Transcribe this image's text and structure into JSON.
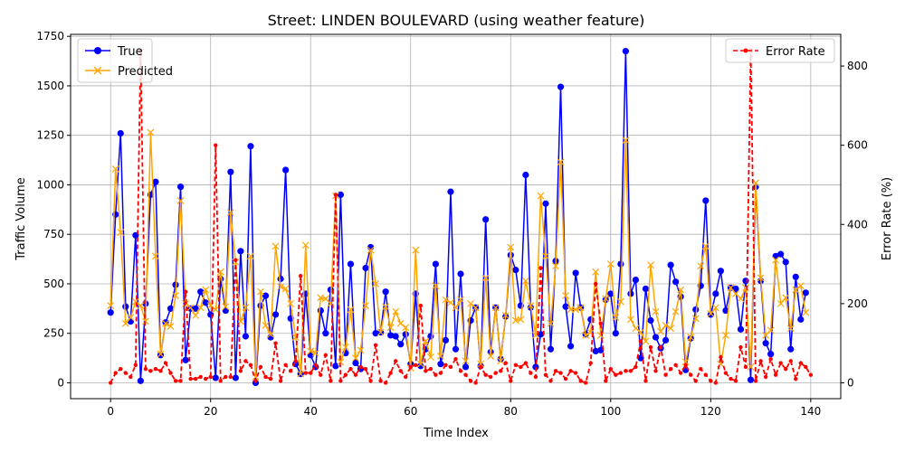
{
  "chart_data": {
    "type": "line",
    "title": "Street: LINDEN BOULEVARD (using weather feature)",
    "xlabel": "Time Index",
    "ylabel": "Traffic Volume",
    "y2label": "Error Rate (%)",
    "xlim": [
      -8,
      146
    ],
    "ylim": [
      -80,
      1760
    ],
    "y2lim": [
      -40,
      880
    ],
    "xticks": [
      0,
      20,
      40,
      60,
      80,
      100,
      120,
      140
    ],
    "yticks": [
      0,
      250,
      500,
      750,
      1000,
      1250,
      1500,
      1750
    ],
    "y2ticks": [
      0,
      200,
      400,
      600,
      800
    ],
    "grid": true,
    "legend_left_position": "upper-left",
    "legend_right_position": "upper-right",
    "colors": {
      "true": "#0000ff",
      "predicted": "#ffa500",
      "error": "#ff0000"
    },
    "series": [
      {
        "name": "True",
        "axis": "left",
        "values": [
          355,
          850,
          1260,
          385,
          310,
          745,
          10,
          400,
          950,
          1015,
          140,
          305,
          375,
          495,
          990,
          115,
          375,
          375,
          460,
          405,
          345,
          25,
          525,
          365,
          1065,
          25,
          665,
          235,
          1195,
          0,
          390,
          440,
          230,
          345,
          525,
          1075,
          325,
          95,
          45,
          450,
          140,
          80,
          365,
          250,
          470,
          85,
          950,
          150,
          600,
          100,
          70,
          580,
          685,
          250,
          255,
          460,
          240,
          235,
          195,
          245,
          95,
          450,
          85,
          170,
          235,
          600,
          95,
          215,
          965,
          170,
          550,
          80,
          315,
          380,
          85,
          825,
          155,
          380,
          120,
          335,
          645,
          570,
          390,
          1050,
          380,
          80,
          245,
          905,
          170,
          615,
          1495,
          385,
          185,
          555,
          380,
          245,
          320,
          160,
          165,
          420,
          450,
          250,
          600,
          1675,
          450,
          520,
          125,
          475,
          315,
          230,
          175,
          215,
          595,
          510,
          435,
          65,
          225,
          370,
          490,
          920,
          345,
          450,
          565,
          365,
          480,
          475,
          270,
          515,
          15,
          990,
          515,
          200,
          145,
          640,
          650,
          610,
          170,
          535,
          320,
          455
        ]
      },
      {
        "name": "Predicted",
        "axis": "left",
        "values": [
          390,
          1080,
          760,
          300,
          330,
          410,
          390,
          310,
          1265,
          640,
          145,
          300,
          285,
          440,
          920,
          400,
          380,
          340,
          380,
          470,
          390,
          370,
          560,
          385,
          860,
          610,
          310,
          380,
          640,
          30,
          460,
          290,
          245,
          690,
          485,
          475,
          400,
          230,
          45,
          695,
          160,
          150,
          430,
          425,
          400,
          945,
          105,
          180,
          370,
          125,
          165,
          390,
          670,
          500,
          255,
          385,
          280,
          360,
          300,
          280,
          75,
          670,
          95,
          210,
          130,
          490,
          135,
          420,
          405,
          380,
          420,
          110,
          400,
          380,
          95,
          530,
          135,
          380,
          110,
          340,
          685,
          315,
          320,
          515,
          390,
          240,
          945,
          640,
          300,
          590,
          1115,
          440,
          370,
          370,
          380,
          240,
          255,
          560,
          240,
          425,
          600,
          330,
          410,
          1225,
          320,
          275,
          255,
          210,
          595,
          360,
          260,
          290,
          275,
          360,
          470,
          105,
          230,
          325,
          590,
          690,
          350,
          380,
          95,
          240,
          480,
          450,
          425,
          480,
          80,
          1010,
          530,
          240,
          265,
          620,
          400,
          430,
          275,
          470,
          490,
          355
        ]
      },
      {
        "name": "Error Rate",
        "axis": "right",
        "values": [
          0,
          25,
          35,
          25,
          15,
          45,
          840,
          35,
          30,
          35,
          30,
          50,
          25,
          5,
          5,
          230,
          10,
          10,
          15,
          10,
          15,
          600,
          5,
          15,
          15,
          310,
          30,
          55,
          45,
          5,
          40,
          15,
          10,
          100,
          5,
          45,
          30,
          55,
          270,
          25,
          25,
          45,
          20,
          70,
          5,
          475,
          5,
          20,
          35,
          20,
          40,
          35,
          5,
          95,
          5,
          0,
          25,
          55,
          30,
          15,
          40,
          45,
          195,
          30,
          35,
          20,
          25,
          45,
          40,
          60,
          30,
          20,
          5,
          0,
          40,
          20,
          15,
          25,
          30,
          50,
          5,
          45,
          40,
          50,
          25,
          15,
          290,
          20,
          5,
          30,
          25,
          10,
          30,
          25,
          5,
          0,
          50,
          250,
          150,
          5,
          35,
          20,
          25,
          30,
          30,
          40,
          105,
          5,
          90,
          30,
          90,
          20,
          35,
          45,
          25,
          45,
          20,
          5,
          35,
          20,
          5,
          0,
          65,
          25,
          10,
          5,
          90,
          40,
          840,
          5,
          55,
          15,
          60,
          20,
          50,
          35,
          55,
          10,
          50,
          40,
          20
        ]
      }
    ]
  }
}
